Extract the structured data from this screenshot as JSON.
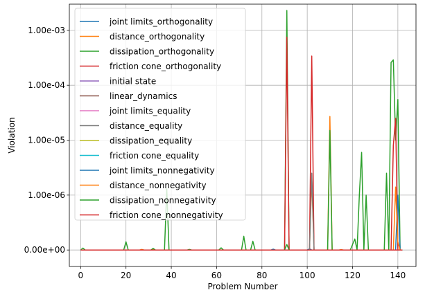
{
  "chart_data": {
    "type": "line",
    "title": "",
    "xlabel": "Problem Number",
    "ylabel": "Violation",
    "xlim": [
      -5,
      148
    ],
    "x_ticks": [
      0,
      20,
      40,
      60,
      80,
      100,
      120,
      140
    ],
    "y_scale": "symlog",
    "ylim": [
      -3e-07,
      0.003
    ],
    "y_ticks": [
      {
        "value": 0,
        "label": "0.00e+00"
      },
      {
        "value": 1e-06,
        "label": "1.00e-06"
      },
      {
        "value": 1e-05,
        "label": "1.00e-05"
      },
      {
        "value": 0.0001,
        "label": "1.00e-04"
      },
      {
        "value": 0.001,
        "label": "1.00e-03"
      }
    ],
    "grid": true,
    "legend_position": "top-left",
    "series": [
      {
        "name": "joint limits_orthogonality",
        "color": "#1f77b4",
        "points": [
          [
            0,
            0
          ],
          [
            84,
            0
          ],
          [
            85,
            1.5e-08
          ],
          [
            86,
            0
          ],
          [
            100,
            0
          ],
          [
            101,
            2e-08
          ],
          [
            102,
            0
          ],
          [
            142,
            0
          ]
        ]
      },
      {
        "name": "distance_orthogonality",
        "color": "#ff7f0e",
        "points": [
          [
            0,
            0
          ],
          [
            26,
            0
          ],
          [
            27,
            1e-08
          ],
          [
            28,
            0
          ],
          [
            31,
            0
          ],
          [
            32,
            1e-08
          ],
          [
            33,
            0
          ],
          [
            101,
            0
          ],
          [
            102,
            2e-06
          ],
          [
            103,
            0
          ],
          [
            109,
            0
          ],
          [
            110,
            2.7e-05
          ],
          [
            111,
            0
          ],
          [
            142,
            0
          ]
        ]
      },
      {
        "name": "dissipation_orthogonality",
        "color": "#2ca02c",
        "points": [
          [
            0,
            0
          ],
          [
            1,
            3.5e-08
          ],
          [
            2,
            0
          ],
          [
            19,
            0
          ],
          [
            20,
            1.5e-07
          ],
          [
            21,
            0
          ],
          [
            31,
            0
          ],
          [
            32,
            3e-08
          ],
          [
            33,
            0
          ],
          [
            37,
            0
          ],
          [
            38,
            1.3e-06
          ],
          [
            39,
            0
          ],
          [
            61,
            0
          ],
          [
            62,
            4e-08
          ],
          [
            63,
            0
          ],
          [
            71,
            0
          ],
          [
            72,
            2.5e-07
          ],
          [
            73,
            0
          ],
          [
            75,
            0
          ],
          [
            76,
            1.6e-07
          ],
          [
            77,
            0
          ],
          [
            90,
            0
          ],
          [
            91,
            0.0023
          ],
          [
            92,
            0
          ],
          [
            109,
            0
          ],
          [
            110,
            1.5e-05
          ],
          [
            111,
            0
          ],
          [
            122,
            0
          ],
          [
            123,
            1e-06
          ],
          [
            124,
            6e-06
          ],
          [
            125,
            0
          ],
          [
            126,
            1e-06
          ],
          [
            127,
            0
          ],
          [
            134,
            0
          ],
          [
            135,
            2.5e-06
          ],
          [
            136,
            0
          ],
          [
            137,
            0.00026
          ],
          [
            138,
            0.00029
          ],
          [
            139,
            1e-05
          ],
          [
            140,
            5.5e-05
          ],
          [
            141,
            0
          ],
          [
            142,
            0
          ]
        ]
      },
      {
        "name": "friction cone_orthogonality",
        "color": "#d62728",
        "points": [
          [
            0,
            0
          ],
          [
            90,
            0
          ],
          [
            91,
            0.00075
          ],
          [
            92,
            0
          ],
          [
            101,
            0
          ],
          [
            102,
            0.00034
          ],
          [
            103,
            0
          ],
          [
            137,
            0
          ],
          [
            138,
            8e-06
          ],
          [
            139,
            2.5e-05
          ],
          [
            140,
            0
          ],
          [
            142,
            0
          ]
        ]
      },
      {
        "name": "initial state",
        "color": "#9467bd",
        "points": [
          [
            0,
            0
          ],
          [
            142,
            0
          ]
        ]
      },
      {
        "name": "linear_dynamics",
        "color": "#8c564b",
        "points": [
          [
            0,
            0
          ],
          [
            142,
            0
          ]
        ]
      },
      {
        "name": "joint limits_equality",
        "color": "#e377c2",
        "points": [
          [
            0,
            0
          ],
          [
            142,
            0
          ]
        ]
      },
      {
        "name": "distance_equality",
        "color": "#7f7f7f",
        "points": [
          [
            0,
            0
          ],
          [
            101,
            0
          ],
          [
            102,
            2.5e-06
          ],
          [
            103,
            0
          ],
          [
            142,
            0
          ]
        ]
      },
      {
        "name": "dissipation_equality",
        "color": "#bcbd22",
        "points": [
          [
            0,
            0
          ],
          [
            142,
            0
          ]
        ]
      },
      {
        "name": "friction cone_equality",
        "color": "#17becf",
        "points": [
          [
            0,
            0
          ],
          [
            142,
            0
          ]
        ]
      },
      {
        "name": "joint limits_nonnegativity",
        "color": "#1f77b4",
        "points": [
          [
            0,
            0
          ],
          [
            139,
            0
          ],
          [
            140,
            1e-06
          ],
          [
            141,
            0
          ],
          [
            142,
            0
          ]
        ]
      },
      {
        "name": "distance_nonnegativity",
        "color": "#ff7f0e",
        "points": [
          [
            0,
            0
          ],
          [
            114,
            0
          ],
          [
            115,
            8e-09
          ],
          [
            116,
            0
          ],
          [
            138,
            0
          ],
          [
            139,
            1.4e-06
          ],
          [
            140,
            1.5e-07
          ],
          [
            141,
            0
          ],
          [
            142,
            0
          ]
        ]
      },
      {
        "name": "dissipation_nonnegativity",
        "color": "#2ca02c",
        "points": [
          [
            0,
            0
          ],
          [
            47,
            0
          ],
          [
            48,
            1e-08
          ],
          [
            49,
            0
          ],
          [
            90,
            0
          ],
          [
            91,
            1e-07
          ],
          [
            92,
            0
          ],
          [
            119,
            0
          ],
          [
            120,
            1e-07
          ],
          [
            121,
            2e-07
          ],
          [
            122,
            0
          ],
          [
            142,
            0
          ]
        ]
      },
      {
        "name": "friction cone_nonnegativity",
        "color": "#d62728",
        "points": [
          [
            0,
            0
          ],
          [
            142,
            0
          ]
        ]
      }
    ]
  }
}
